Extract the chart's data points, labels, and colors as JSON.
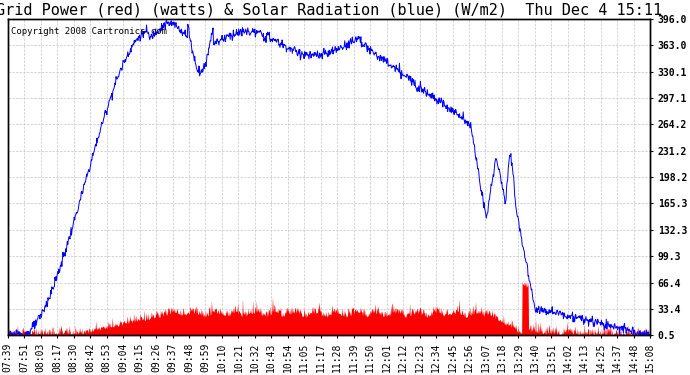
{
  "title": "Grid Power (red) (watts) & Solar Radiation (blue) (W/m2)  Thu Dec 4 15:11",
  "background_color": "#ffffff",
  "plot_bg_color": "#ffffff",
  "grid_color": "#c8c8c8",
  "yticks": [
    0.5,
    33.4,
    66.4,
    99.3,
    132.3,
    165.3,
    198.2,
    231.2,
    264.2,
    297.1,
    330.1,
    363.0,
    396.0
  ],
  "xtick_labels": [
    "07:39",
    "07:51",
    "08:03",
    "08:17",
    "08:30",
    "08:42",
    "08:53",
    "09:04",
    "09:15",
    "09:26",
    "09:37",
    "09:48",
    "09:59",
    "10:10",
    "10:21",
    "10:32",
    "10:43",
    "10:54",
    "11:05",
    "11:17",
    "11:28",
    "11:39",
    "11:50",
    "12:01",
    "12:12",
    "12:23",
    "12:34",
    "12:45",
    "12:56",
    "13:07",
    "13:18",
    "13:29",
    "13:40",
    "13:51",
    "14:02",
    "14:13",
    "14:25",
    "14:37",
    "14:48",
    "15:08"
  ],
  "copyright_text": "Copyright 2008 Cartronics.com",
  "ymin": 0.5,
  "ymax": 396.0,
  "blue_color": "#0000ff",
  "red_color": "#ff0000",
  "title_fontsize": 11,
  "tick_fontsize": 7,
  "copyright_fontsize": 6.5
}
